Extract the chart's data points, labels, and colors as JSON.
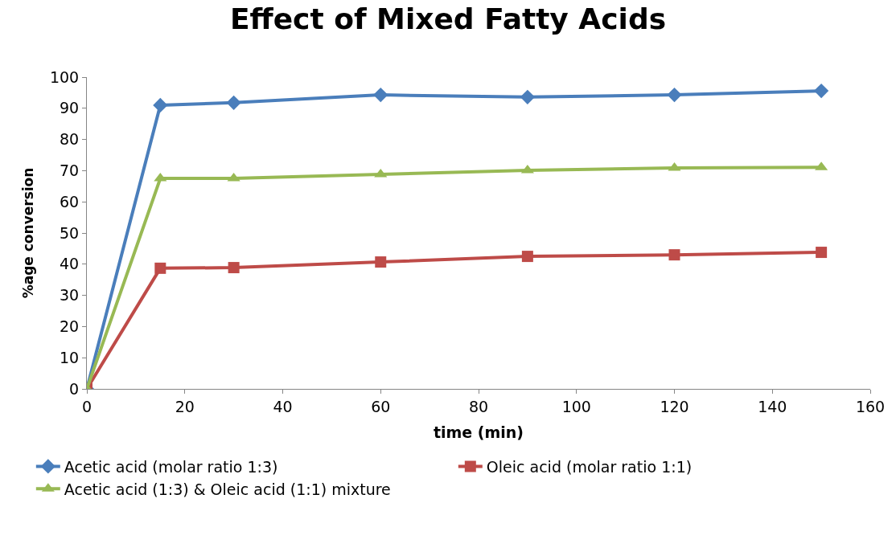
{
  "chart_data": {
    "type": "line",
    "title": "Effect of Mixed Fatty Acids",
    "xlabel": "time (min)",
    "ylabel": "%age conversion",
    "x": [
      0,
      15,
      30,
      60,
      90,
      120,
      150
    ],
    "series": [
      {
        "name": "Acetic acid (molar ratio 1:3)",
        "color": "#4a7ebb",
        "marker": "diamond",
        "values": [
          0,
          91,
          91.8,
          94.3,
          93.6,
          94.3,
          95.6
        ]
      },
      {
        "name": "Oleic acid (molar ratio 1:1)",
        "color": "#be4b48",
        "marker": "square",
        "values": [
          0,
          38.7,
          38.9,
          40.7,
          42.5,
          43,
          43.8
        ]
      },
      {
        "name": "Acetic acid (1:3) & Oleic acid (1:1) mixture",
        "color": "#98b954",
        "marker": "triangle",
        "values": [
          0,
          67.5,
          67.5,
          68.8,
          70.1,
          70.9,
          71.1
        ]
      }
    ],
    "xlim": [
      0,
      160
    ],
    "xticks": [
      0,
      20,
      40,
      60,
      80,
      100,
      120,
      140,
      160
    ],
    "ylim": [
      0,
      100
    ],
    "yticks": [
      0,
      10,
      20,
      30,
      40,
      50,
      60,
      70,
      80,
      90,
      100
    ],
    "legend": "bottom",
    "line_style": "solid"
  }
}
